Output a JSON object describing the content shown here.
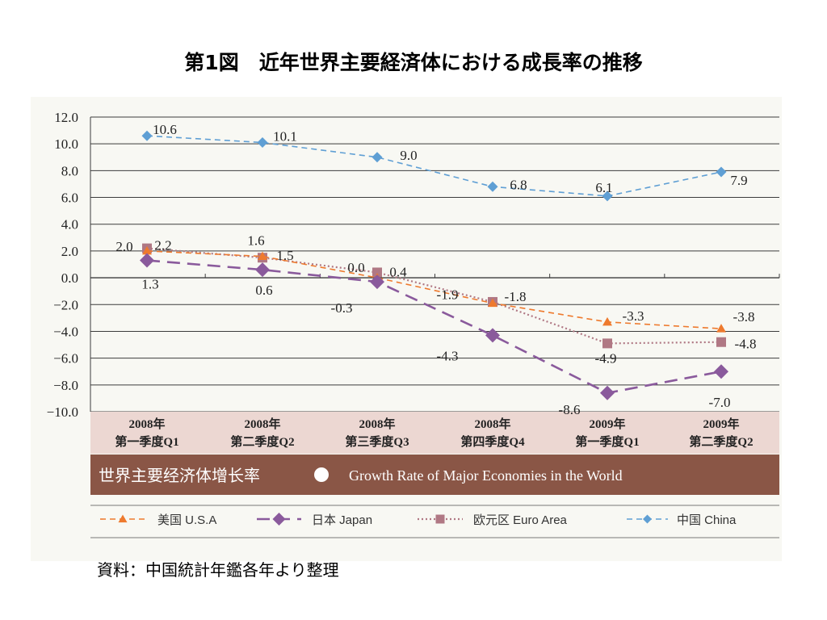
{
  "title": "第1図　近年世界主要経済体における成長率の推移",
  "source": "資料：中国統計年鑑各年より整理",
  "colors": {
    "usa": "#ee7a2e",
    "japan": "#8a5a9c",
    "euro": "#b07884",
    "china": "#5f9fd4",
    "category_band": "#ecd7d2",
    "banner": "#8a5646"
  },
  "chart_data": {
    "type": "line",
    "banner_cn": "世界主要经济体增长率",
    "banner_en": "Growth Rate of Major Economies in the World",
    "categories": [
      {
        "year": "2008年",
        "quarter": "第一季度Q1"
      },
      {
        "year": "2008年",
        "quarter": "第二季度Q2"
      },
      {
        "year": "2008年",
        "quarter": "第三季度Q3"
      },
      {
        "year": "2008年",
        "quarter": "第四季度Q4"
      },
      {
        "year": "2009年",
        "quarter": "第一季度Q1"
      },
      {
        "year": "2009年",
        "quarter": "第二季度Q2"
      }
    ],
    "ylim": [
      -10,
      12
    ],
    "yticks": [
      "12.0",
      "10.0",
      "8.0",
      "6.0",
      "4.0",
      "2.0",
      "0.0",
      "−2.0",
      "−4.0",
      "−6.0",
      "−8.0",
      "−10.0"
    ],
    "grid": true,
    "legend_position": "bottom",
    "series": [
      {
        "key": "usa",
        "name": "美国 U.S.A",
        "marker": "triangle",
        "dash": "7,5",
        "values": [
          2.0,
          1.6,
          0.0,
          -1.9,
          -3.3,
          -3.8
        ],
        "labels": [
          "2.0",
          "1.6",
          "0.0",
          "-1.9",
          "-3.3",
          "-3.8"
        ]
      },
      {
        "key": "japan",
        "name": "日本 Japan",
        "marker": "diamond",
        "dash": "16,9",
        "values": [
          1.3,
          0.6,
          -0.3,
          -4.3,
          -8.6,
          -7.0
        ],
        "labels": [
          "1.3",
          "0.6",
          "-0.3",
          "-4.3",
          "-8.6",
          "-7.0"
        ]
      },
      {
        "key": "euro",
        "name": "欧元区 Euro Area",
        "marker": "square",
        "dash": "2,3",
        "values": [
          2.2,
          1.5,
          0.4,
          -1.8,
          -4.9,
          -4.8
        ],
        "labels": [
          "2.2",
          "1.5",
          "0.4",
          "-1.8",
          "-4.9",
          "-4.8"
        ]
      },
      {
        "key": "china",
        "name": "中国 China",
        "marker": "diamond",
        "dash": "7,5",
        "values": [
          10.6,
          10.1,
          9.0,
          6.8,
          6.1,
          7.9
        ],
        "labels": [
          "10.6",
          "10.1",
          "9.0",
          "6.8",
          "6.1",
          "7.9"
        ]
      }
    ]
  }
}
